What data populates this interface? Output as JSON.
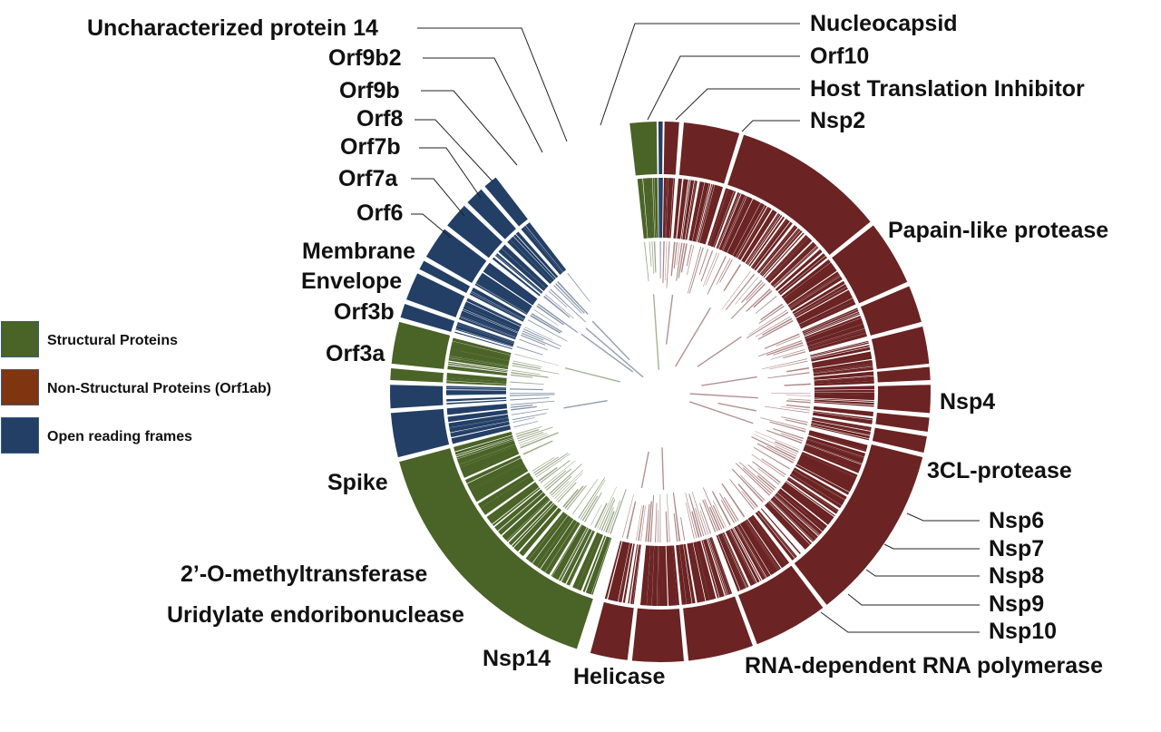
{
  "colors": {
    "structural": "#4a6327",
    "non_structural": "#6b2323",
    "orf": "#233f66",
    "legend_structural": "#4a6327",
    "legend_non_structural": "#7f3510",
    "legend_orf": "#233f66"
  },
  "legend": [
    {
      "label": "Structural Proteins",
      "color_key": "legend_structural"
    },
    {
      "label": "Non-Structural Proteins (Orf1ab)",
      "color_key": "legend_non_structural"
    },
    {
      "label": "Open reading frames",
      "color_key": "legend_orf"
    }
  ],
  "segments": [
    {
      "name": "Nucleocapsid",
      "group": "structural",
      "start": -6.5,
      "end": -0.8
    },
    {
      "name": "Orf10",
      "group": "orf",
      "start": -0.4,
      "end": 0.5
    },
    {
      "name": "Host Translation Inhibitor",
      "group": "non_structural",
      "start": 0.9,
      "end": 4.0
    },
    {
      "name": "Nsp2",
      "group": "non_structural",
      "start": 5.0,
      "end": 17.0
    },
    {
      "name": "Papain-like protease",
      "group": "non_structural",
      "start": 18.0,
      "end": 51.0
    },
    {
      "name": "Nsp4",
      "group": "non_structural",
      "start": 52.0,
      "end": 66.0
    },
    {
      "name": "3CL-protease",
      "group": "non_structural",
      "start": 67.0,
      "end": 75.0
    },
    {
      "name": "Nsp6",
      "group": "non_structural",
      "start": 76.0,
      "end": 84.0
    },
    {
      "name": "Nsp7",
      "group": "non_structural",
      "start": 84.7,
      "end": 87.5
    },
    {
      "name": "Nsp8",
      "group": "non_structural",
      "start": 88.5,
      "end": 94.5
    },
    {
      "name": "Nsp9",
      "group": "non_structural",
      "start": 95.5,
      "end": 98.5
    },
    {
      "name": "Nsp10",
      "group": "non_structural",
      "start": 99.5,
      "end": 103.0
    },
    {
      "name": "RNA-dependent RNA polymerase",
      "group": "non_structural",
      "start": 104.0,
      "end": 142.0
    },
    {
      "name": "Helicase",
      "group": "non_structural",
      "start": 143.0,
      "end": 159.0
    },
    {
      "name": "Nsp14",
      "group": "non_structural",
      "start": 160.0,
      "end": 174.0
    },
    {
      "name": "Uridylate endoribonuclease",
      "group": "non_structural",
      "start": 175.0,
      "end": 186.0
    },
    {
      "name": "2’-O-methyltransferase",
      "group": "non_structural",
      "start": 187.0,
      "end": 195.0
    },
    {
      "name": "Spike",
      "group": "structural",
      "start": 198.0,
      "end": 255.0
    },
    {
      "name": "Orf3a",
      "group": "orf",
      "start": 256.0,
      "end": 265.5
    },
    {
      "name": "Orf3b",
      "group": "orf",
      "start": 266.5,
      "end": 271.5
    },
    {
      "name": "Envelope",
      "group": "structural",
      "start": 272.5,
      "end": 275.0
    },
    {
      "name": "Membrane",
      "group": "structural",
      "start": 276.0,
      "end": 285.0
    },
    {
      "name": "Orf6",
      "group": "orf",
      "start": 286.0,
      "end": 289.0
    },
    {
      "name": "Orf7a",
      "group": "orf",
      "start": 290.0,
      "end": 296.0
    },
    {
      "name": "Orf7b",
      "group": "orf",
      "start": 297.0,
      "end": 299.0
    },
    {
      "name": "Orf8",
      "group": "orf",
      "start": 300.0,
      "end": 307.0
    },
    {
      "name": "Orf9b",
      "group": "orf",
      "start": 308.0,
      "end": 313.5
    },
    {
      "name": "Orf9b2",
      "group": "orf",
      "start": 314.5,
      "end": 318.5
    },
    {
      "name": "Uncharacterized protein 14",
      "group": "orf",
      "start": 319.5,
      "end": 322.5
    }
  ]
}
